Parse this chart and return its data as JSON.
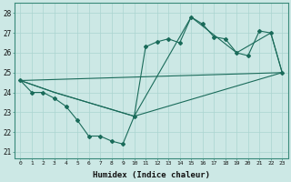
{
  "xlabel": "Humidex (Indice chaleur)",
  "bg_color": "#cce8e5",
  "grid_color": "#aad4d0",
  "line_color": "#1a6b5a",
  "xlim": [
    -0.5,
    23.5
  ],
  "ylim": [
    20.7,
    28.5
  ],
  "yticks": [
    21,
    22,
    23,
    24,
    25,
    26,
    27,
    28
  ],
  "xticks": [
    0,
    1,
    2,
    3,
    4,
    5,
    6,
    7,
    8,
    9,
    10,
    11,
    12,
    13,
    14,
    15,
    16,
    17,
    18,
    19,
    20,
    21,
    22,
    23
  ],
  "curve_x": [
    0,
    1,
    2,
    3,
    4,
    5,
    6,
    7,
    8,
    9,
    10,
    11,
    12,
    13,
    14,
    15,
    16,
    17,
    18,
    19,
    20,
    21,
    22,
    23
  ],
  "curve_y": [
    24.6,
    24.0,
    24.0,
    23.7,
    23.3,
    22.6,
    21.8,
    21.8,
    21.55,
    21.4,
    22.8,
    26.3,
    26.55,
    26.7,
    26.5,
    27.8,
    27.45,
    26.8,
    26.7,
    26.0,
    25.85,
    27.1,
    27.0,
    25.0
  ],
  "line1_x": [
    0,
    23
  ],
  "line1_y": [
    24.6,
    25.0
  ],
  "line2_x": [
    0,
    3,
    10,
    15,
    19,
    22,
    23
  ],
  "line2_y": [
    24.6,
    24.0,
    22.8,
    27.8,
    26.0,
    27.0,
    25.0
  ],
  "line3_x": [
    0,
    3,
    10,
    23
  ],
  "line3_y": [
    24.6,
    24.0,
    22.8,
    25.0
  ]
}
